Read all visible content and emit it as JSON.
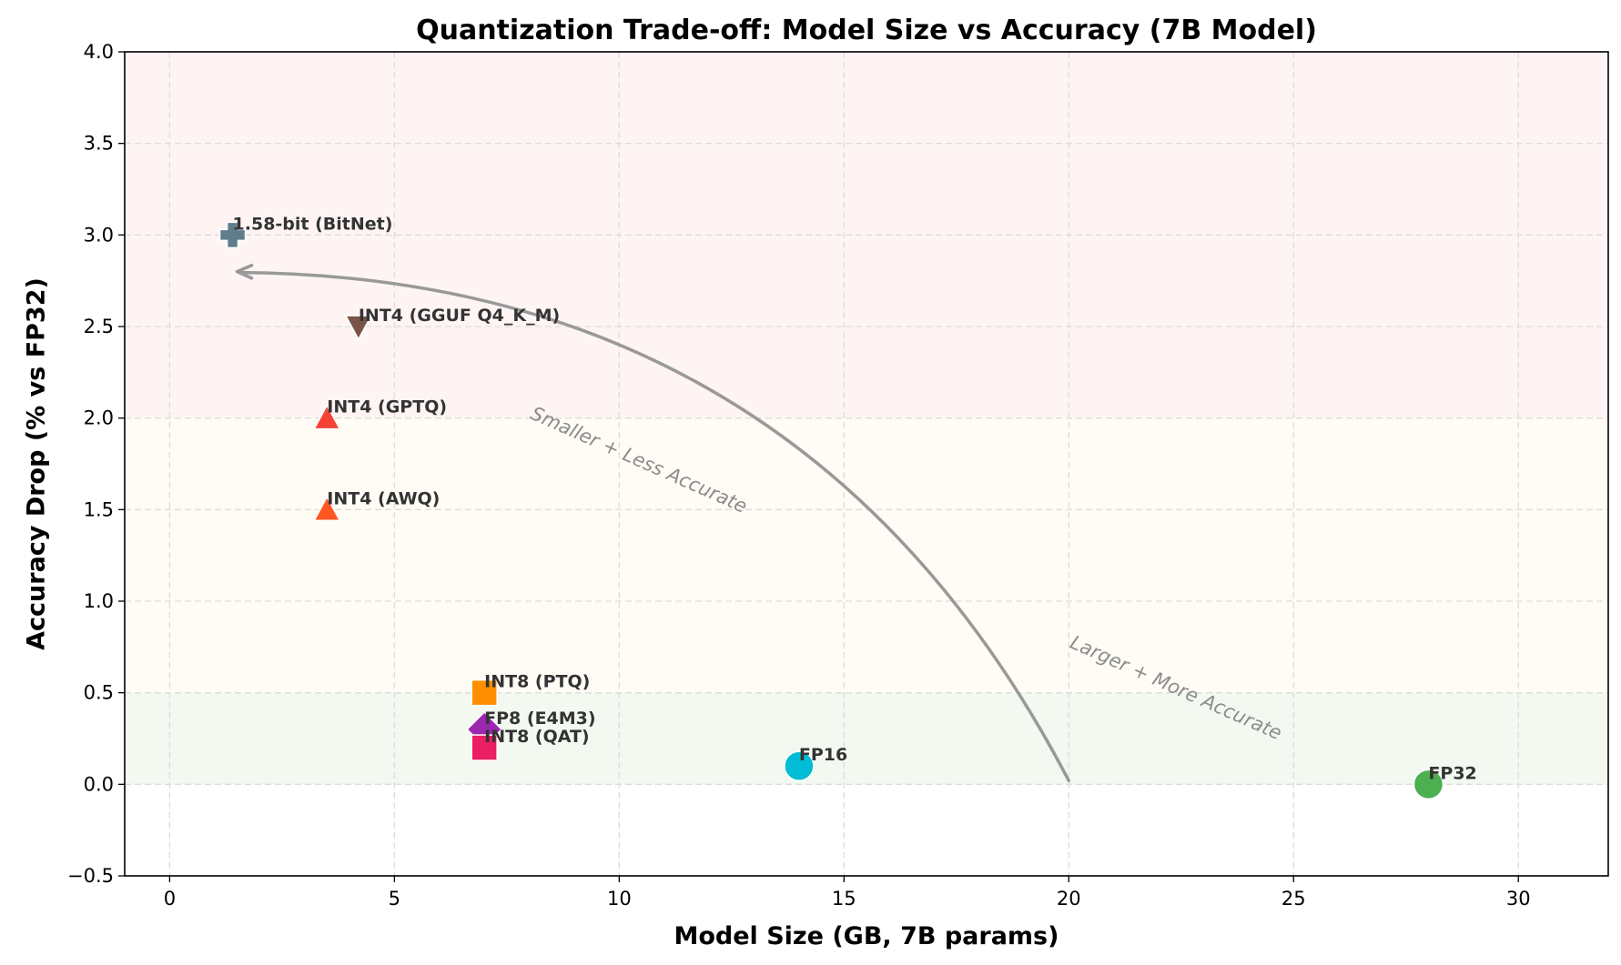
{
  "chart_data": {
    "type": "scatter",
    "title": "Quantization Trade-off: Model Size vs Accuracy (7B Model)",
    "xlabel": "Model Size (GB, 7B params)",
    "ylabel": "Accuracy Drop (% vs FP32)",
    "xlim": [
      -1,
      32
    ],
    "ylim": [
      -0.5,
      4.0
    ],
    "x_ticks": [
      0,
      5,
      10,
      15,
      20,
      25,
      30
    ],
    "y_ticks": [
      -0.5,
      0.0,
      0.5,
      1.0,
      1.5,
      2.0,
      2.5,
      3.0,
      3.5,
      4.0
    ],
    "x_tick_labels": [
      "0",
      "5",
      "10",
      "15",
      "20",
      "25",
      "30"
    ],
    "y_tick_labels": [
      "−0.5",
      "0.0",
      "0.5",
      "1.0",
      "1.5",
      "2.0",
      "2.5",
      "3.0",
      "3.5",
      "4.0"
    ],
    "grid": true,
    "bands": [
      {
        "y0": 2.0,
        "y1": 4.0,
        "color": "#fff4f4"
      },
      {
        "y0": 0.5,
        "y1": 2.0,
        "color": "#fffcf5"
      },
      {
        "y0": 0.0,
        "y1": 0.5,
        "color": "#f3f8f1"
      }
    ],
    "points": [
      {
        "label": "FP32",
        "x": 28,
        "y": 0.0,
        "marker": "circle",
        "color": "#4caf50"
      },
      {
        "label": "FP16",
        "x": 14,
        "y": 0.1,
        "marker": "circle",
        "color": "#00bcd4"
      },
      {
        "label": "INT8 (PTQ)",
        "x": 7,
        "y": 0.5,
        "marker": "square",
        "color": "#ff8f00"
      },
      {
        "label": "FP8 (E4M3)",
        "x": 7,
        "y": 0.3,
        "marker": "diamond",
        "color": "#9c27b0"
      },
      {
        "label": "INT8 (QAT)",
        "x": 7,
        "y": 0.2,
        "marker": "square",
        "color": "#e91e63"
      },
      {
        "label": "INT4 (AWQ)",
        "x": 3.5,
        "y": 1.5,
        "marker": "triangle",
        "color": "#ff5722"
      },
      {
        "label": "INT4 (GPTQ)",
        "x": 3.5,
        "y": 2.0,
        "marker": "triangle",
        "color": "#f44336"
      },
      {
        "label": "INT4 (GGUF Q4_K_M)",
        "x": 4.2,
        "y": 2.5,
        "marker": "triangle-down",
        "color": "#795548"
      },
      {
        "label": "1.58-bit (BitNet)",
        "x": 1.4,
        "y": 3.0,
        "marker": "plus",
        "color": "#607d8b"
      }
    ],
    "arrow": {
      "from": [
        20,
        0.02
      ],
      "to": [
        1.5,
        2.8
      ],
      "color": "#999999"
    },
    "annotations": [
      {
        "text": "Smaller + Less Accurate",
        "x": 8.0,
        "y": 2.0,
        "rotation": 24
      },
      {
        "text": "Larger + More Accurate",
        "x": 20.0,
        "y": 0.75,
        "rotation": 24
      }
    ]
  }
}
